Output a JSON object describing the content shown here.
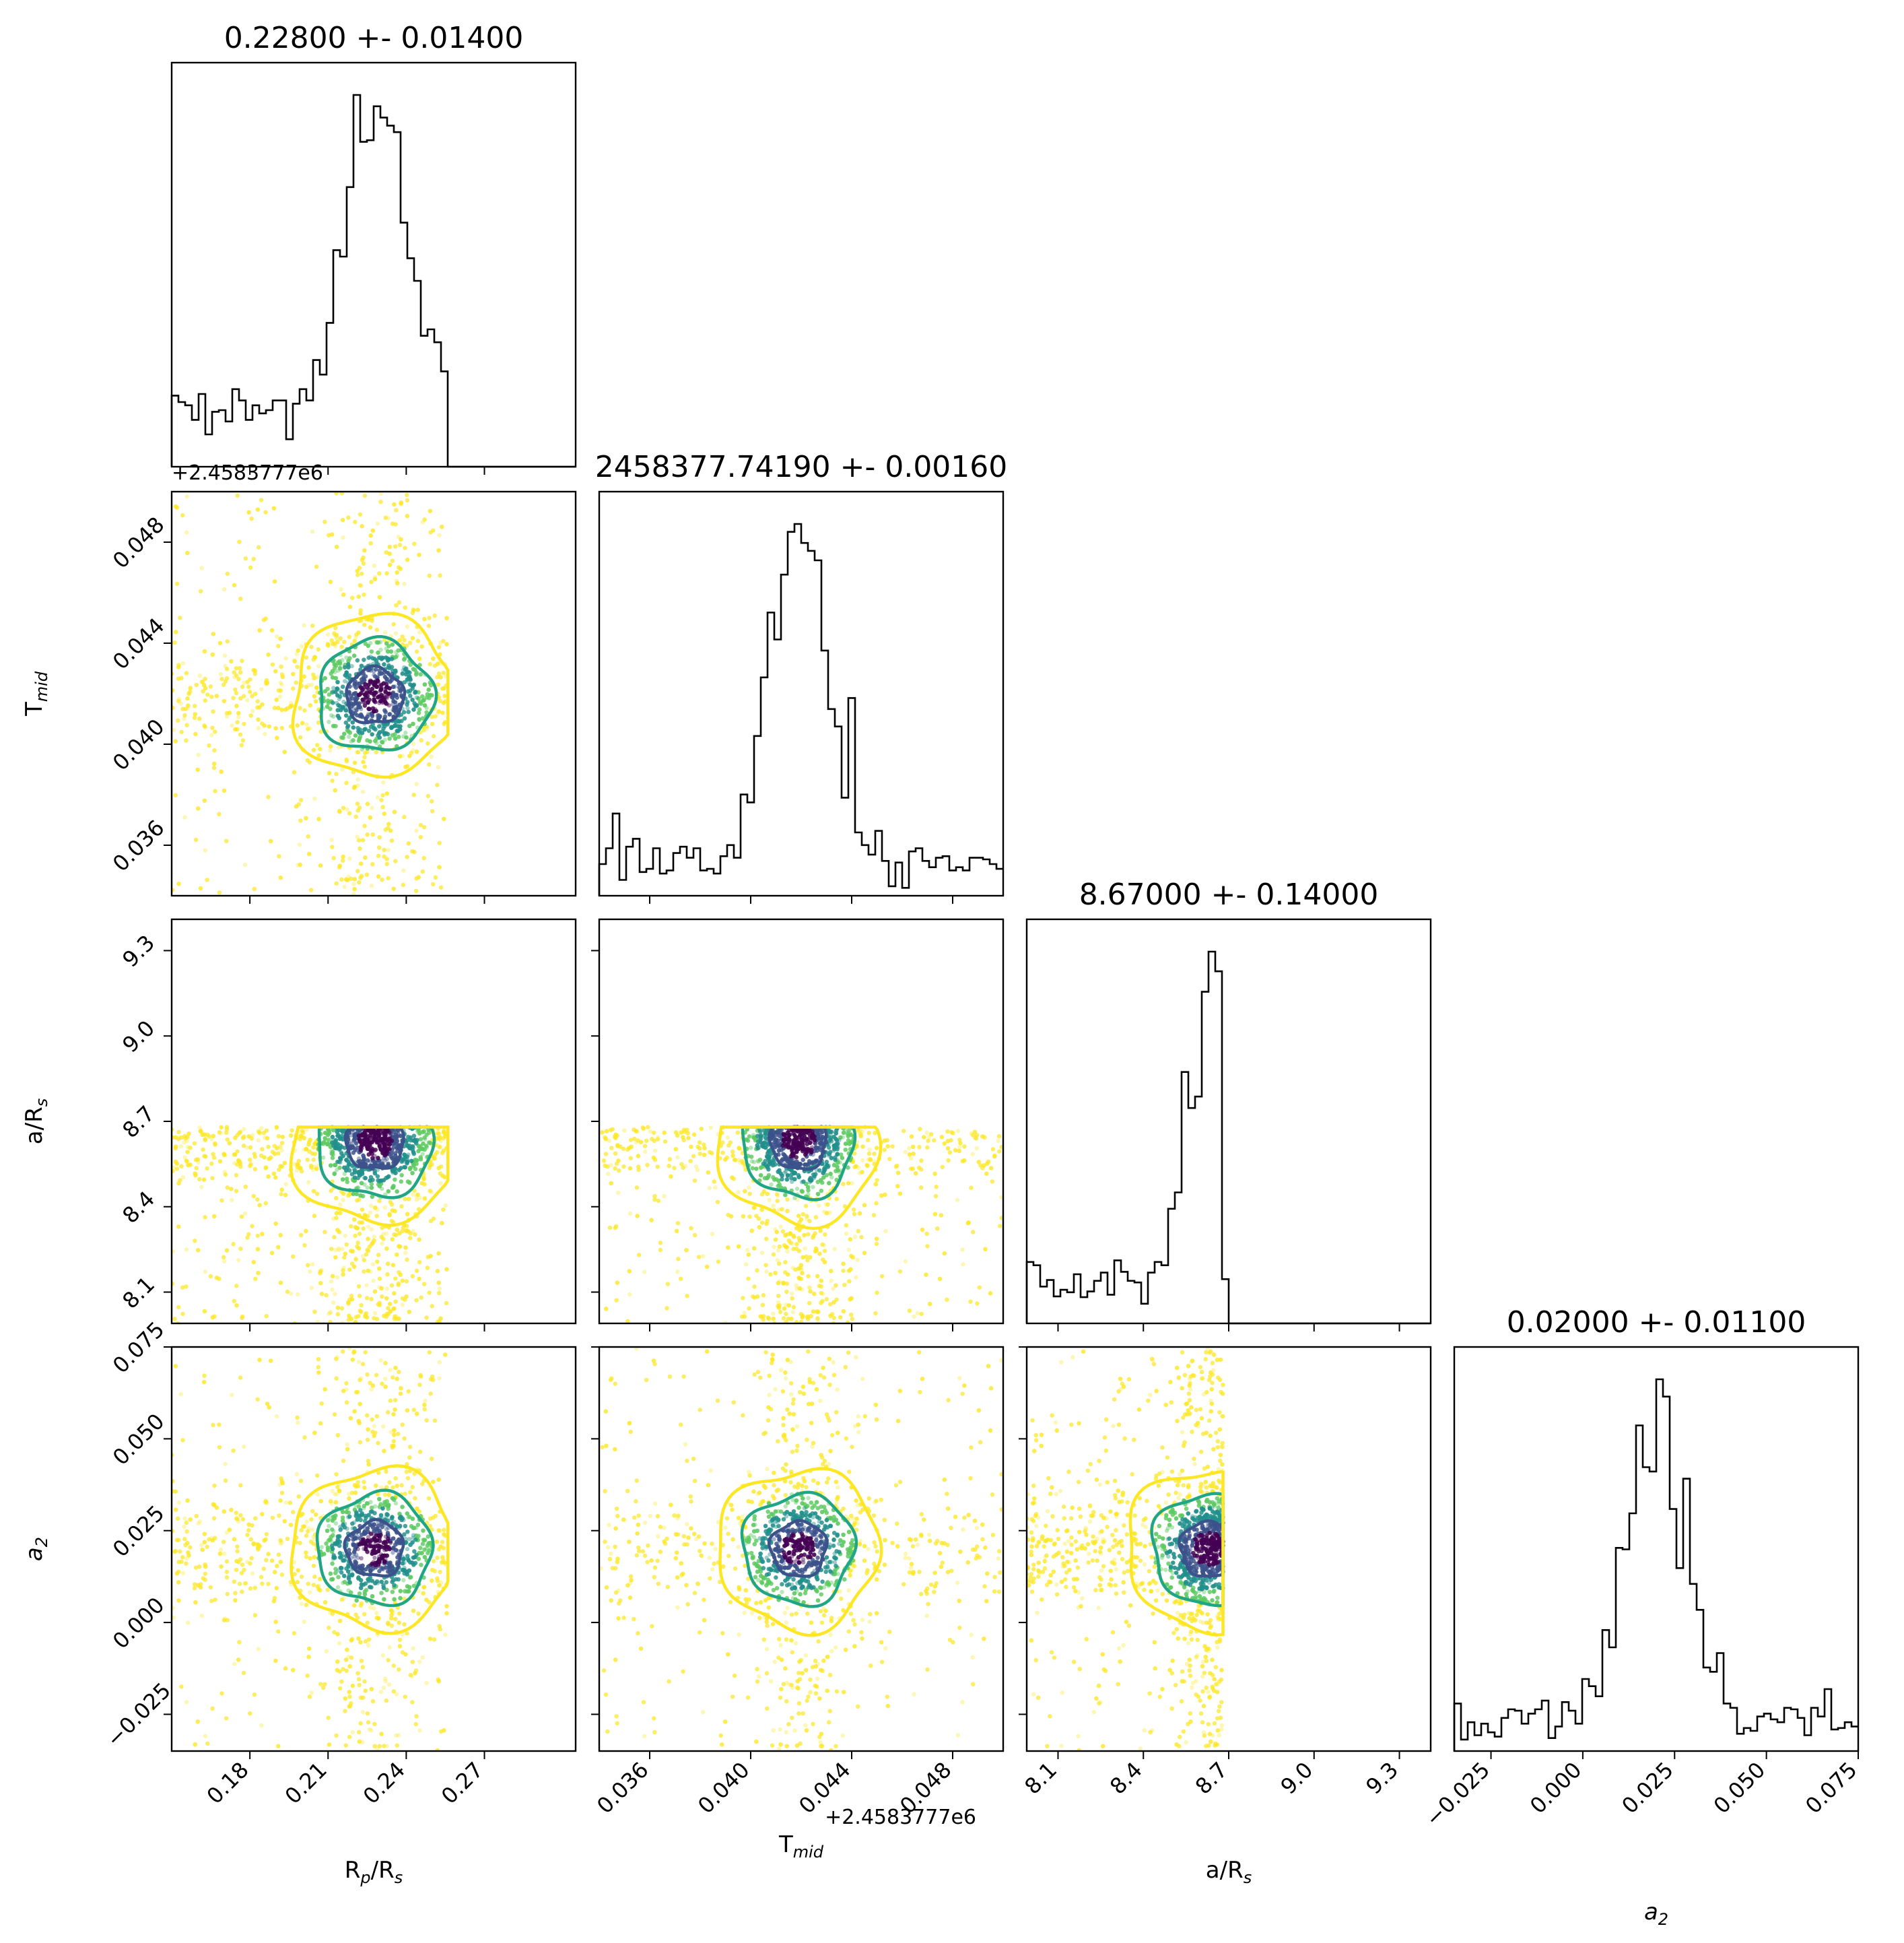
{
  "figure": {
    "type": "corner_plot"
  },
  "parameters": [
    {
      "key": "rprs",
      "label": "R",
      "label_sub": "p",
      "label_tail": "/R",
      "label_tail_sub": "s",
      "title": "0.22800 +- 0.01400",
      "range": [
        0.15,
        0.305
      ],
      "ticks": [
        0.18,
        0.21,
        0.24,
        0.27
      ],
      "tick_labels": [
        "0.18",
        "0.21",
        "0.24",
        "0.27"
      ]
    },
    {
      "key": "tmid",
      "label": "T",
      "label_sub": "mid",
      "label_tail": "",
      "label_tail_sub": "",
      "title": "2458377.74190 +- 0.00160",
      "range": [
        0.034,
        0.05
      ],
      "offset_text": "+2.4583777e6",
      "ticks": [
        0.036,
        0.04,
        0.044,
        0.048
      ],
      "tick_labels": [
        "0.036",
        "0.040",
        "0.044",
        "0.048"
      ]
    },
    {
      "key": "ars",
      "label": "a/R",
      "label_sub": "s",
      "label_tail": "",
      "label_tail_sub": "",
      "title": "8.67000 +- 0.14000",
      "range": [
        7.99,
        9.41
      ],
      "ticks": [
        8.1,
        8.4,
        8.7,
        9.0,
        9.3
      ],
      "tick_labels": [
        "8.1",
        "8.4",
        "8.7",
        "9.0",
        "9.3"
      ]
    },
    {
      "key": "a2",
      "label": "a",
      "label_sub": "2",
      "label_tail": "",
      "label_tail_sub": "",
      "italic": true,
      "title": "0.02000 +- 0.01100",
      "range": [
        -0.035,
        0.075
      ],
      "ticks": [
        -0.025,
        0.0,
        0.025,
        0.05,
        0.075
      ],
      "tick_labels": [
        "−0.025",
        "0.000",
        "0.025",
        "0.050",
        "0.075"
      ]
    }
  ],
  "chart_data": {
    "type": "corner",
    "histograms": [
      {
        "param": "R_p/R_s",
        "peak": 0.228,
        "sigma": 0.014,
        "cut_max": 0.256,
        "bins": 60
      },
      {
        "param": "T_mid",
        "peak": 0.0419,
        "sigma": 0.0016,
        "bins": 60
      },
      {
        "param": "a/R_s",
        "peak": 8.67,
        "sigma": 0.14,
        "cut_max": 8.68,
        "bins": 60
      },
      {
        "param": "a_2",
        "peak": 0.02,
        "sigma": 0.011,
        "bins": 60
      }
    ],
    "scatter_2d": [
      {
        "x": "R_p/R_s",
        "y": "T_mid"
      },
      {
        "x": "R_p/R_s",
        "y": "a/R_s"
      },
      {
        "x": "T_mid",
        "y": "a/R_s"
      },
      {
        "x": "R_p/R_s",
        "y": "a_2"
      },
      {
        "x": "T_mid",
        "y": "a_2"
      },
      {
        "x": "a/R_s",
        "y": "a_2"
      }
    ],
    "point_colormap": [
      "#440154",
      "#3b528b",
      "#21918c",
      "#5ec962",
      "#fde725"
    ],
    "contour_colors": [
      "#3b528b",
      "#21a685",
      "#fde725"
    ]
  }
}
